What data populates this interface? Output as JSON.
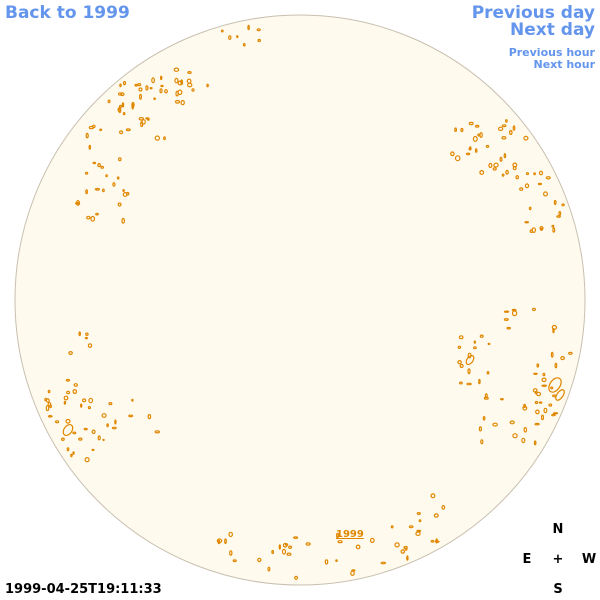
{
  "nav": {
    "back": "Back to 1999",
    "previous_day": "Previous day",
    "next_day": "Next day",
    "previous_hour": "Previous hour",
    "next_hour": "Next hour"
  },
  "disk_year_link": "1999",
  "compass": {
    "n": "N",
    "e": "E",
    "center": "+",
    "w": "W",
    "s": "S"
  },
  "timestamp": "1999-04-25T19:11:33",
  "colors": {
    "link": "#6495ed",
    "disk_fill": "#fffaee",
    "disk_border": "#c8c0b0",
    "contour": "#e08700"
  }
}
